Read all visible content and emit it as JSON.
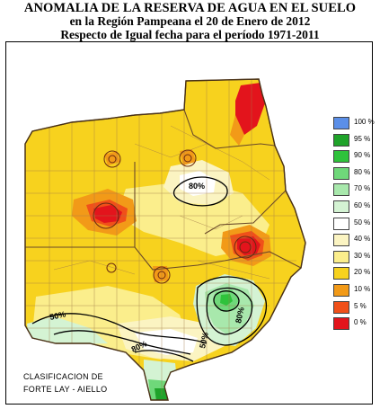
{
  "title": {
    "line1": "ANOMALIA DE LA RESERVA DE AGUA EN EL SUELO",
    "line2": "en la Región Pampeana el 20 de Enero de 2012",
    "line3": "Respecto de Igual fecha para el período 1971-2011"
  },
  "legend": [
    {
      "label": "100 %",
      "color": "#5b8fe8"
    },
    {
      "label": "95 %",
      "color": "#1fa32a"
    },
    {
      "label": "90 %",
      "color": "#2fc23b"
    },
    {
      "label": "80 %",
      "color": "#6fd87a"
    },
    {
      "label": "70 %",
      "color": "#a8e8ac"
    },
    {
      "label": "60 %",
      "color": "#d4f3d3"
    },
    {
      "label": "50 %",
      "color": "#ffffff"
    },
    {
      "label": "40 %",
      "color": "#fbf4c2"
    },
    {
      "label": "30 %",
      "color": "#fbee8c"
    },
    {
      "label": "20 %",
      "color": "#f7d21e"
    },
    {
      "label": "10 %",
      "color": "#f29a18"
    },
    {
      "label": "5 %",
      "color": "#f0501a"
    },
    {
      "label": "0 %",
      "color": "#e3141c"
    }
  ],
  "contour_labels": [
    "80%",
    "50%",
    "80%",
    "50%",
    "80%"
  ],
  "credit": {
    "line1": "CLASIFICACION DE",
    "line2": "FORTE LAY - AIELLO"
  }
}
